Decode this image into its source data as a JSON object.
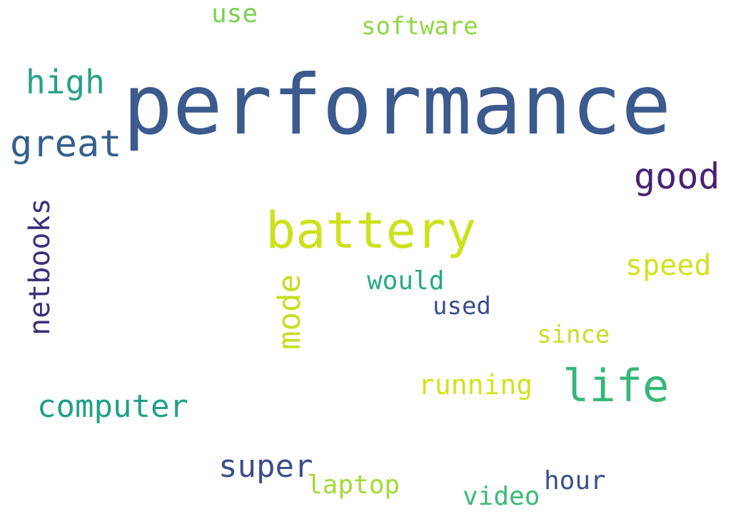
{
  "words": {
    "performance": {
      "text": "performance",
      "color": "#3b5a8d"
    },
    "battery": {
      "text": "battery",
      "color": "#cde11d"
    },
    "life": {
      "text": "life",
      "color": "#35b779"
    },
    "great": {
      "text": "great",
      "color": "#355f8d"
    },
    "good": {
      "text": "good",
      "color": "#482173"
    },
    "high": {
      "text": "high",
      "color": "#26a185"
    },
    "netbooks": {
      "text": "netbooks",
      "color": "#3e2e7b"
    },
    "mode": {
      "text": "mode",
      "color": "#c7dd21"
    },
    "computer": {
      "text": "computer",
      "color": "#21a088"
    },
    "super": {
      "text": "super",
      "color": "#3d4f8a"
    },
    "speed": {
      "text": "speed",
      "color": "#d2e21b"
    },
    "running": {
      "text": "running",
      "color": "#d3e21c"
    },
    "would": {
      "text": "would",
      "color": "#25ab82"
    },
    "used": {
      "text": "used",
      "color": "#3a4c8a"
    },
    "since": {
      "text": "since",
      "color": "#c9dd26"
    },
    "use": {
      "text": "use",
      "color": "#7ad151"
    },
    "software": {
      "text": "software",
      "color": "#8fd744"
    },
    "laptop": {
      "text": "laptop",
      "color": "#a2da37"
    },
    "video": {
      "text": "video",
      "color": "#3aba76"
    },
    "hour": {
      "text": "hour",
      "color": "#3b4f8a"
    }
  }
}
